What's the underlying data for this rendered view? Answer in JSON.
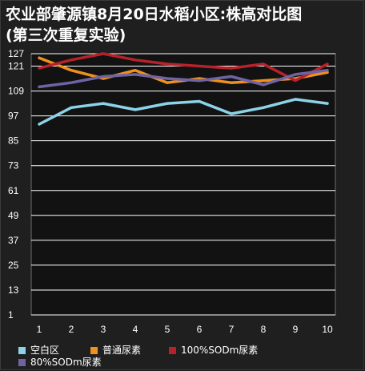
{
  "chart_data": {
    "type": "line",
    "title": "农业部肇源镇8月20日水稻小区:株高对比图\n(第三次重复实验)",
    "xlabel": "",
    "ylabel": "",
    "categories": [
      "1",
      "2",
      "3",
      "4",
      "5",
      "6",
      "7",
      "8",
      "9",
      "10"
    ],
    "yticks": [
      1,
      13,
      25,
      37,
      49,
      61,
      73,
      85,
      97,
      109,
      121,
      127
    ],
    "ylim": [
      1,
      127
    ],
    "grid": true,
    "legend_position": "bottom",
    "series": [
      {
        "name": "空白区",
        "color": "#8dd3e8",
        "values": [
          93,
          101,
          103,
          100,
          103,
          104,
          98,
          101,
          105,
          103
        ]
      },
      {
        "name": "普通尿素",
        "color": "#f0911d",
        "values": [
          125,
          119,
          115,
          119,
          113,
          115,
          113,
          114,
          115,
          118
        ]
      },
      {
        "name": "100%SODm尿素",
        "color": "#b5222b",
        "values": [
          120,
          124,
          127,
          124,
          122,
          121,
          120,
          122,
          114,
          122
        ]
      },
      {
        "name": "80%SODm尿素",
        "color": "#6f64a3",
        "values": [
          111,
          113,
          116,
          117,
          115,
          114,
          116,
          112,
          117,
          119
        ]
      }
    ]
  }
}
